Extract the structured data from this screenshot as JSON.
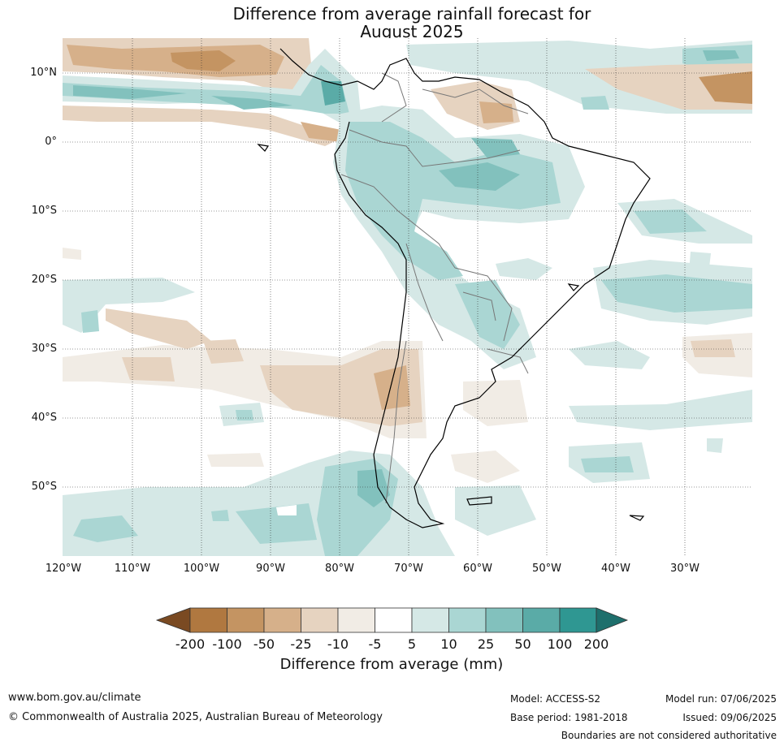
{
  "title": {
    "line1": "Difference from average rainfall forecast for",
    "line2": "August 2025"
  },
  "map": {
    "projection": "lat-lon",
    "region": "South America and adjacent oceans",
    "lon_range": [
      -120,
      -20
    ],
    "lat_range": [
      -60,
      15
    ],
    "grid": true,
    "lat_labels": [
      "10°N",
      "0°",
      "10°S",
      "20°S",
      "30°S",
      "40°S",
      "50°S"
    ],
    "lon_labels": [
      "120°W",
      "110°W",
      "100°W",
      "90°W",
      "80°W",
      "70°W",
      "60°W",
      "50°W",
      "40°W",
      "30°W"
    ]
  },
  "colorbar": {
    "title": "Difference from average (mm)",
    "labels": [
      "-200",
      "-100",
      "-50",
      "-25",
      "-10",
      "-5",
      "5",
      "10",
      "25",
      "50",
      "100",
      "200"
    ],
    "colors": [
      "#7a4a22",
      "#b07840",
      "#c49462",
      "#d6b08a",
      "#e6d3c0",
      "#f1ece5",
      "#ffffff",
      "#d5e8e6",
      "#aad6d3",
      "#82c1bd",
      "#5aaba7",
      "#2f9792",
      "#1e6f6c"
    ]
  },
  "footer": {
    "url": "www.bom.gov.au/climate",
    "copyright": "© Commonwealth of Australia 2025, Australian Bureau of Meteorology",
    "model": "Model: ACCESS-S2",
    "base_period": "Base period: 1981-2018",
    "model_run": "Model run: 07/06/2025",
    "issued": "Issued: 09/06/2025",
    "disclaimer": "Boundaries are not considered authoritative"
  }
}
